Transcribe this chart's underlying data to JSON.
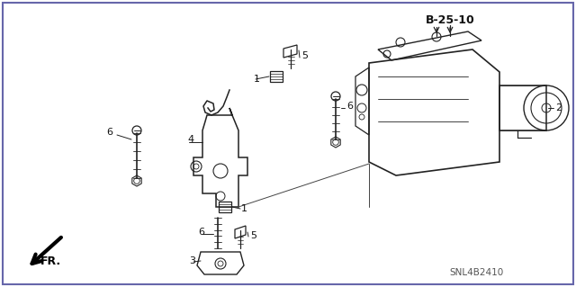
{
  "fig_size": [
    6.4,
    3.19
  ],
  "dpi": 100,
  "bg": "#ffffff",
  "border_color": "#6666aa",
  "line_color": "#222222",
  "label_color": "#111111",
  "dim_color": "#555555",
  "SNL": "SNL4B2410",
  "ref": "B-25-10",
  "fr": "FR."
}
